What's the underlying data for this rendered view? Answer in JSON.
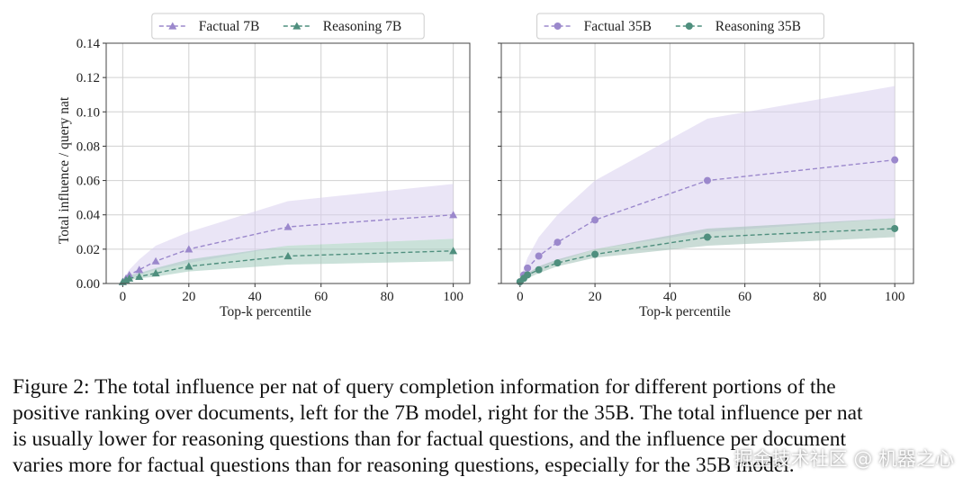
{
  "chart_data": [
    {
      "type": "line",
      "xlabel": "Top-k percentile",
      "ylabel": "Total influence / query nat",
      "x": [
        0,
        1,
        2,
        5,
        10,
        20,
        50,
        100
      ],
      "xlim": [
        -5,
        105
      ],
      "xticks": [
        0,
        20,
        40,
        60,
        80,
        100
      ],
      "ylim": [
        0,
        0.14
      ],
      "yticks": [
        {
          "value": 0,
          "label": "0.00"
        },
        0.02,
        0.04,
        0.06,
        0.08,
        {
          "value": 0.1,
          "label": "0.10"
        },
        0.12,
        0.14
      ],
      "ytick_labels": true,
      "grid": true,
      "legend": "top",
      "series": [
        {
          "name": "Factual 7B",
          "color": "#9b88cc",
          "band_color": "#d9cfee",
          "marker": "triangle",
          "values": [
            0.001,
            0.003,
            0.005,
            0.008,
            0.013,
            0.02,
            0.033,
            0.04
          ],
          "band_lower": [
            0.0005,
            0.002,
            0.003,
            0.005,
            0.008,
            0.012,
            0.022,
            0.026
          ],
          "band_upper": [
            0.002,
            0.005,
            0.008,
            0.014,
            0.022,
            0.03,
            0.048,
            0.058
          ]
        },
        {
          "name": "Reasoning 7B",
          "color": "#4f8f7e",
          "band_color": "#9fc9b9",
          "marker": "triangle",
          "values": [
            0.001,
            0.002,
            0.003,
            0.004,
            0.006,
            0.01,
            0.016,
            0.019
          ],
          "band_lower": [
            0.0005,
            0.001,
            0.002,
            0.003,
            0.004,
            0.007,
            0.011,
            0.013
          ],
          "band_upper": [
            0.002,
            0.003,
            0.005,
            0.006,
            0.009,
            0.014,
            0.022,
            0.026
          ]
        }
      ]
    },
    {
      "type": "line",
      "xlabel": "Top-k percentile",
      "x": [
        0,
        1,
        2,
        5,
        10,
        20,
        50,
        100
      ],
      "xlim": [
        -5,
        105
      ],
      "xticks": [
        0,
        20,
        40,
        60,
        80,
        100
      ],
      "ylim": [
        0,
        0.14
      ],
      "yticks": [
        0,
        0.02,
        0.04,
        0.06,
        0.08,
        0.1,
        0.12,
        0.14
      ],
      "ytick_labels": false,
      "grid": true,
      "legend": "top",
      "series": [
        {
          "name": "Factual 35B",
          "color": "#9b88cc",
          "band_color": "#d9cfee",
          "marker": "circle",
          "values": [
            0.001,
            0.005,
            0.009,
            0.016,
            0.024,
            0.037,
            0.06,
            0.072
          ],
          "band_lower": [
            0.0005,
            0.002,
            0.004,
            0.008,
            0.013,
            0.02,
            0.03,
            0.038
          ],
          "band_upper": [
            0.002,
            0.009,
            0.015,
            0.027,
            0.04,
            0.06,
            0.096,
            0.115
          ]
        },
        {
          "name": "Reasoning 35B",
          "color": "#4f8f7e",
          "band_color": "#9fbfb5",
          "marker": "circle",
          "values": [
            0.001,
            0.003,
            0.005,
            0.008,
            0.012,
            0.017,
            0.027,
            0.032
          ],
          "band_lower": [
            0.0005,
            0.002,
            0.003,
            0.006,
            0.01,
            0.015,
            0.022,
            0.027
          ],
          "band_upper": [
            0.002,
            0.004,
            0.006,
            0.01,
            0.014,
            0.02,
            0.032,
            0.038
          ]
        }
      ]
    }
  ],
  "caption_lines": [
    "Figure 2: The total influence per nat of query completion information for different portions of the",
    "positive ranking over documents, left for the 7B model, right for the 35B. The total influence per nat",
    "is usually lower for reasoning questions than for factual questions, and the influence per document",
    "varies more for factual questions than for reasoning questions, especially for the 35B model."
  ],
  "watermark": "掘金技术社区 @ 机器之心"
}
